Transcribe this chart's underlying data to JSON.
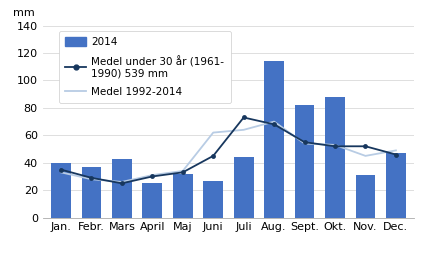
{
  "months": [
    "Jan.",
    "Febr.",
    "Mars",
    "April",
    "Maj",
    "Juni",
    "Juli",
    "Aug.",
    "Sept.",
    "Okt.",
    "Nov.",
    "Dec."
  ],
  "bars_2014": [
    40,
    37,
    43,
    25,
    32,
    27,
    44,
    114,
    82,
    88,
    31,
    47
  ],
  "line_medel30": [
    35,
    29,
    25,
    30,
    33,
    45,
    73,
    68,
    55,
    52,
    52,
    46
  ],
  "line_medel9214": [
    33,
    28,
    26,
    31,
    34,
    62,
    64,
    70,
    54,
    53,
    45,
    49
  ],
  "bar_color": "#4472C4",
  "line30_color": "#17375E",
  "line9214_color": "#B8CCE4",
  "ylim": [
    0,
    140
  ],
  "yticks": [
    0,
    20,
    40,
    60,
    80,
    100,
    120,
    140
  ],
  "ylabel": "mm",
  "legend_bar": "2014",
  "legend_line30": "Medel under 30 år (1961-\n1990) 539 mm",
  "legend_line9214": "Medel 1992-2014",
  "axis_fontsize": 8,
  "legend_fontsize": 7.5,
  "grid_color": "#D9D9D9",
  "spine_color": "#AAAAAA"
}
